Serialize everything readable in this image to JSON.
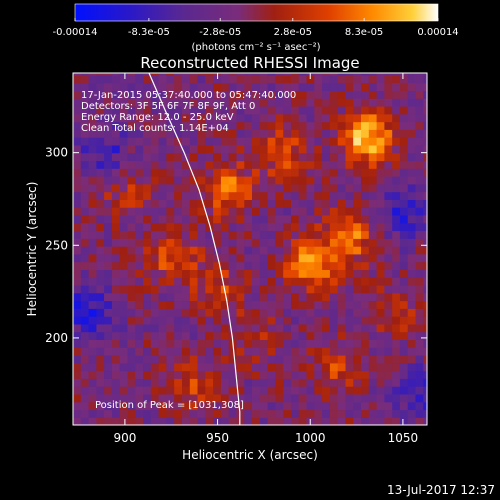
{
  "chart_data": {
    "type": "heatmap",
    "title": "Reconstructed RHESSI Image",
    "xlabel": "Heliocentric X (arcsec)",
    "ylabel": "Heliocentric Y (arcsec)",
    "xlim": [
      872,
      1063
    ],
    "ylim": [
      153,
      343
    ],
    "x_ticks": [
      "900",
      "950",
      "1000",
      "1050"
    ],
    "x_tick_values": [
      900,
      950,
      1000,
      1050
    ],
    "y_ticks": [
      "200",
      "250",
      "300"
    ],
    "y_tick_values": [
      200,
      250,
      300
    ],
    "colorbar": {
      "tick_labels": [
        "-0.00014",
        "-8.3e-05",
        "-2.8e-05",
        "2.8e-05",
        "8.3e-05",
        "0.00014"
      ],
      "tick_values": [
        -0.00014,
        -8.3e-05,
        -2.8e-05,
        2.8e-05,
        8.3e-05,
        0.00014
      ],
      "range": [
        -0.00014,
        0.00014
      ],
      "unit_label": "(photons cm⁻² s⁻¹ asec⁻²)"
    },
    "annotations": [
      "17-Jan-2015 05:37:40.000 to 05:47:40.000",
      "Detectors: 3F 5F 6F 7F 8F 9F, Att 0",
      "Energy Range: 12.0 - 25.0 keV",
      "Clean     Total counts: 1.14E+04"
    ],
    "peak_label": "Position of Peak = [1031,308]",
    "peak": [
      1031,
      308
    ],
    "bright_sources": [
      {
        "x": 1031,
        "y": 308,
        "value": 0.00014
      },
      {
        "x": 1000,
        "y": 240,
        "value": 0.00012
      },
      {
        "x": 955,
        "y": 280,
        "value": 9.5e-05
      },
      {
        "x": 1022,
        "y": 255,
        "value": 9e-05
      },
      {
        "x": 925,
        "y": 245,
        "value": 8e-05
      },
      {
        "x": 985,
        "y": 300,
        "value": 7e-05
      },
      {
        "x": 935,
        "y": 175,
        "value": 6.5e-05
      },
      {
        "x": 1015,
        "y": 185,
        "value": 6e-05
      },
      {
        "x": 950,
        "y": 228,
        "value": 6e-05
      },
      {
        "x": 900,
        "y": 280,
        "value": 4.5e-05
      },
      {
        "x": 1045,
        "y": 215,
        "value": 4.5e-05
      },
      {
        "x": 968,
        "y": 200,
        "value": 4e-05
      }
    ],
    "dark_sources": [
      {
        "x": 880,
        "y": 215,
        "value": -8e-05
      },
      {
        "x": 1050,
        "y": 268,
        "value": -7e-05
      },
      {
        "x": 890,
        "y": 300,
        "value": -6e-05
      },
      {
        "x": 1060,
        "y": 170,
        "value": -6e-05
      }
    ],
    "limb_curve": [
      [
        913,
        343
      ],
      [
        923,
        320
      ],
      [
        932,
        300
      ],
      [
        940,
        280
      ],
      [
        946,
        260
      ],
      [
        951,
        240
      ],
      [
        955,
        220
      ],
      [
        958,
        200
      ],
      [
        960,
        180
      ],
      [
        962,
        160
      ],
      [
        962,
        153
      ]
    ]
  },
  "footer": {
    "date_stamp": "13-Jul-2017 12:37"
  }
}
